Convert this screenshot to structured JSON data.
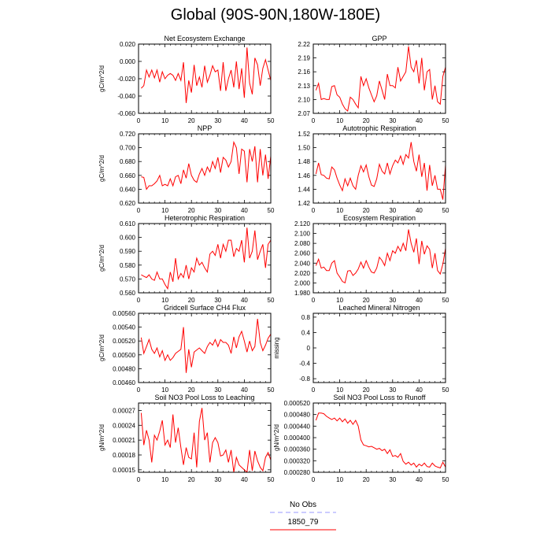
{
  "title": "Global (90S-90N,180W-180E)",
  "legend": {
    "items": [
      {
        "label": "No Obs",
        "color": "#9999ff",
        "dash": true
      },
      {
        "label": "1850_79",
        "color": "#ff0000",
        "dash": false
      }
    ]
  },
  "chart_data": [
    {
      "type": "line",
      "title": "Net Ecosystem Exchange",
      "ylabel": "gC/m^2/d",
      "xlim": [
        0,
        50
      ],
      "ylim": [
        -0.06,
        0.02
      ],
      "xticks": [
        "0",
        "10",
        "20",
        "30",
        "40",
        "50"
      ],
      "yticks": [
        [
          "-0.060",
          -0.06
        ],
        [
          "-0.040",
          -0.04
        ],
        [
          "-0.020",
          -0.02
        ],
        [
          "0.000",
          0.0
        ],
        [
          "0.020",
          0.02
        ]
      ],
      "series": [
        {
          "color": "#ff0000",
          "x0": 1,
          "values": [
            -0.031,
            -0.028,
            -0.01,
            -0.018,
            -0.01,
            -0.019,
            -0.01,
            -0.024,
            -0.012,
            -0.02,
            -0.016,
            -0.014,
            -0.016,
            -0.022,
            -0.014,
            -0.022,
            -0.001,
            -0.048,
            -0.022,
            -0.036,
            -0.004,
            -0.028,
            -0.018,
            -0.03,
            -0.005,
            -0.024,
            -0.016,
            -0.005,
            -0.012,
            -0.01,
            -0.034,
            -0.001,
            -0.034,
            -0.02,
            -0.01,
            -0.03,
            0.0,
            -0.032,
            -0.008,
            -0.042,
            0.016,
            -0.025,
            -0.038,
            0.004,
            -0.004,
            -0.028,
            -0.008,
            0.002,
            -0.01,
            -0.022
          ]
        }
      ]
    },
    {
      "type": "line",
      "title": "GPP",
      "ylabel": "",
      "xlim": [
        0,
        50
      ],
      "ylim": [
        2.07,
        2.22
      ],
      "xticks": [
        "0",
        "10",
        "20",
        "30",
        "40",
        "50"
      ],
      "yticks": [
        [
          "2.07",
          2.07
        ],
        [
          "2.10",
          2.1
        ],
        [
          "2.13",
          2.13
        ],
        [
          "2.16",
          2.16
        ],
        [
          "2.19",
          2.19
        ],
        [
          "2.22",
          2.22
        ]
      ],
      "series": [
        {
          "color": "#ff0000",
          "x0": 1,
          "values": [
            2.12,
            2.135,
            2.1,
            2.102,
            2.1,
            2.1,
            2.128,
            2.13,
            2.11,
            2.105,
            2.09,
            2.08,
            2.075,
            2.105,
            2.1,
            2.09,
            2.082,
            2.15,
            2.13,
            2.145,
            2.125,
            2.11,
            2.095,
            2.108,
            2.14,
            2.12,
            2.1,
            2.155,
            2.13,
            2.13,
            2.125,
            2.17,
            2.14,
            2.15,
            2.16,
            2.215,
            2.17,
            2.16,
            2.185,
            2.135,
            2.19,
            2.12,
            2.16,
            2.165,
            2.1,
            2.13,
            2.095,
            2.09,
            2.15,
            2.17
          ]
        }
      ]
    },
    {
      "type": "line",
      "title": "NPP",
      "ylabel": "gC/m^2/d",
      "xlim": [
        0,
        50
      ],
      "ylim": [
        0.62,
        0.72
      ],
      "xticks": [
        "0",
        "10",
        "20",
        "30",
        "40",
        "50"
      ],
      "yticks": [
        [
          "0.620",
          0.62
        ],
        [
          "0.640",
          0.64
        ],
        [
          "0.660",
          0.66
        ],
        [
          "0.680",
          0.68
        ],
        [
          "0.700",
          0.7
        ],
        [
          "0.720",
          0.72
        ]
      ],
      "series": [
        {
          "color": "#ff0000",
          "x0": 1,
          "values": [
            0.658,
            0.657,
            0.64,
            0.645,
            0.645,
            0.648,
            0.652,
            0.66,
            0.645,
            0.647,
            0.645,
            0.655,
            0.645,
            0.658,
            0.66,
            0.648,
            0.668,
            0.656,
            0.677,
            0.66,
            0.653,
            0.65,
            0.662,
            0.67,
            0.66,
            0.672,
            0.665,
            0.68,
            0.67,
            0.686,
            0.664,
            0.686,
            0.682,
            0.672,
            0.68,
            0.708,
            0.7,
            0.662,
            0.698,
            0.695,
            0.65,
            0.698,
            0.68,
            0.702,
            0.65,
            0.698,
            0.66,
            0.69,
            0.655,
            0.688
          ]
        }
      ]
    },
    {
      "type": "line",
      "title": "Autotrophic Respiration",
      "ylabel": "",
      "xlim": [
        0,
        50
      ],
      "ylim": [
        1.42,
        1.52
      ],
      "xticks": [
        "0",
        "10",
        "20",
        "30",
        "40",
        "50"
      ],
      "yticks": [
        [
          "1.42",
          1.42
        ],
        [
          "1.44",
          1.44
        ],
        [
          "1.46",
          1.46
        ],
        [
          "1.48",
          1.48
        ],
        [
          "1.50",
          1.5
        ],
        [
          "1.52",
          1.52
        ]
      ],
      "series": [
        {
          "color": "#ff0000",
          "x0": 1,
          "values": [
            1.462,
            1.478,
            1.461,
            1.46,
            1.456,
            1.455,
            1.472,
            1.468,
            1.456,
            1.446,
            1.438,
            1.455,
            1.445,
            1.456,
            1.445,
            1.44,
            1.46,
            1.474,
            1.465,
            1.475,
            1.458,
            1.446,
            1.444,
            1.455,
            1.476,
            1.466,
            1.462,
            1.478,
            1.462,
            1.474,
            1.482,
            1.478,
            1.488,
            1.476,
            1.49,
            1.485,
            1.508,
            1.48,
            1.466,
            1.49,
            1.458,
            1.478,
            1.438,
            1.475,
            1.445,
            1.46,
            1.44,
            1.44,
            1.425,
            1.475
          ]
        }
      ]
    },
    {
      "type": "line",
      "title": "Heterotrophic Respiration",
      "ylabel": "gC/m^2/d",
      "xlim": [
        0,
        50
      ],
      "ylim": [
        0.56,
        0.61
      ],
      "xticks": [
        "0",
        "10",
        "20",
        "30",
        "40",
        "50"
      ],
      "yticks": [
        [
          "0.560",
          0.56
        ],
        [
          "0.570",
          0.57
        ],
        [
          "0.580",
          0.58
        ],
        [
          "0.590",
          0.59
        ],
        [
          "0.600",
          0.6
        ],
        [
          "0.610",
          0.61
        ]
      ],
      "series": [
        {
          "color": "#ff0000",
          "x0": 1,
          "values": [
            0.573,
            0.572,
            0.571,
            0.573,
            0.57,
            0.569,
            0.575,
            0.57,
            0.57,
            0.566,
            0.563,
            0.575,
            0.568,
            0.585,
            0.57,
            0.574,
            0.571,
            0.58,
            0.57,
            0.578,
            0.575,
            0.585,
            0.58,
            0.582,
            0.578,
            0.575,
            0.588,
            0.59,
            0.587,
            0.595,
            0.585,
            0.595,
            0.59,
            0.598,
            0.598,
            0.586,
            0.592,
            0.59,
            0.598,
            0.582,
            0.607,
            0.585,
            0.59,
            0.605,
            0.584,
            0.59,
            0.595,
            0.578,
            0.595,
            0.598
          ]
        }
      ]
    },
    {
      "type": "line",
      "title": "Ecosystem Respiration",
      "ylabel": "",
      "xlim": [
        0,
        50
      ],
      "ylim": [
        1.98,
        2.12
      ],
      "xticks": [
        "0",
        "10",
        "20",
        "30",
        "40",
        "50"
      ],
      "yticks": [
        [
          "1.980",
          1.98
        ],
        [
          "2.000",
          2.0
        ],
        [
          "2.020",
          2.02
        ],
        [
          "2.040",
          2.04
        ],
        [
          "2.060",
          2.06
        ],
        [
          "2.080",
          2.08
        ],
        [
          "2.100",
          2.1
        ],
        [
          "2.120",
          2.12
        ]
      ],
      "series": [
        {
          "color": "#ff0000",
          "x0": 1,
          "values": [
            2.035,
            2.048,
            2.03,
            2.032,
            2.025,
            2.025,
            2.04,
            2.045,
            2.02,
            2.012,
            2.003,
            2.0,
            2.024,
            2.025,
            2.015,
            2.02,
            2.028,
            2.042,
            2.03,
            2.045,
            2.032,
            2.022,
            2.02,
            2.03,
            2.052,
            2.045,
            2.035,
            2.06,
            2.045,
            2.065,
            2.06,
            2.074,
            2.064,
            2.08,
            2.065,
            2.108,
            2.08,
            2.062,
            2.09,
            2.038,
            2.085,
            2.058,
            2.075,
            2.068,
            2.03,
            2.06,
            2.025,
            2.018,
            2.038,
            2.07
          ]
        }
      ]
    },
    {
      "type": "line",
      "title": "Gridcell Surface CH4 Flux",
      "ylabel": "gC/m^2/d",
      "xlim": [
        0,
        50
      ],
      "ylim": [
        0.0046,
        0.0056
      ],
      "xticks": [
        "0",
        "10",
        "20",
        "30",
        "40",
        "50"
      ],
      "yticks": [
        [
          "0.00460",
          0.0046
        ],
        [
          "0.00480",
          0.0048
        ],
        [
          "0.00500",
          0.005
        ],
        [
          "0.00520",
          0.0052
        ],
        [
          "0.00540",
          0.0054
        ],
        [
          "0.00560",
          0.0056
        ]
      ],
      "series": [
        {
          "color": "#ff0000",
          "x0": 1,
          "values": [
            0.00525,
            0.00502,
            0.00512,
            0.00522,
            0.00508,
            0.00502,
            0.0051,
            0.00497,
            0.00506,
            0.00492,
            0.005,
            0.00492,
            0.00496,
            0.00502,
            0.00505,
            0.00508,
            0.0054,
            0.00474,
            0.00508,
            0.00482,
            0.00504,
            0.00507,
            0.0051,
            0.00506,
            0.00502,
            0.00512,
            0.00518,
            0.00514,
            0.00522,
            0.00512,
            0.00522,
            0.00518,
            0.00518,
            0.00514,
            0.00502,
            0.00526,
            0.0051,
            0.00526,
            0.00534,
            0.0052,
            0.00504,
            0.0052,
            0.00506,
            0.00512,
            0.00552,
            0.00518,
            0.00506,
            0.00514,
            0.00524,
            0.0053
          ]
        }
      ]
    },
    {
      "type": "line",
      "title": "Leached Mineral Nitrogen",
      "ylabel": "missing",
      "xlim": [
        0,
        50
      ],
      "ylim": [
        -0.9,
        0.9
      ],
      "xticks": [
        "0",
        "10",
        "20",
        "30",
        "40",
        "50"
      ],
      "yticks": [
        [
          "-0.8",
          -0.8
        ],
        [
          "-0.4",
          -0.4
        ],
        [
          "0",
          0
        ],
        [
          "0.4",
          0.4
        ],
        [
          "0.8",
          0.8
        ]
      ],
      "series": []
    },
    {
      "type": "line",
      "title": "Soil NO3 Pool Loss to Leaching",
      "ylabel": "gN/m^2/d",
      "xlim": [
        0,
        50
      ],
      "ylim": [
        0.000145,
        0.000285
      ],
      "xticks": [
        "0",
        "10",
        "20",
        "30",
        "40",
        "50"
      ],
      "yticks": [
        [
          "0.00015",
          0.00015
        ],
        [
          "0.00018",
          0.00018
        ],
        [
          "0.00021",
          0.00021
        ],
        [
          "0.00024",
          0.00024
        ],
        [
          "0.00027",
          0.00027
        ]
      ],
      "series": [
        {
          "color": "#ff0000",
          "x0": 1,
          "values": [
            0.000265,
            0.0002,
            0.00023,
            0.00021,
            0.000165,
            0.00022,
            0.00021,
            0.000228,
            0.00025,
            0.0002,
            0.00021,
            0.000195,
            0.000262,
            0.000205,
            0.000235,
            0.000195,
            0.00016,
            0.000195,
            0.000175,
            0.000172,
            0.000225,
            0.000155,
            0.000248,
            0.000275,
            0.00021,
            0.000225,
            0.000165,
            0.000205,
            0.000215,
            0.000205,
            0.000178,
            0.00018,
            0.00019,
            0.000165,
            0.00019,
            0.000145,
            0.000175,
            0.00016,
            0.000155,
            0.00015,
            0.000145,
            0.00019,
            0.000148,
            0.000188,
            0.000168,
            0.000155,
            0.000148,
            0.000175,
            0.000185,
            0.00017
          ]
        }
      ]
    },
    {
      "type": "line",
      "title": "Soil NO3 Pool Loss to Runoff",
      "ylabel": "gN/m^2/d",
      "xlim": [
        0,
        50
      ],
      "ylim": [
        0.00028,
        0.00052
      ],
      "xticks": [
        "0",
        "10",
        "20",
        "30",
        "40",
        "50"
      ],
      "yticks": [
        [
          "0.000280",
          0.00028
        ],
        [
          "0.000320",
          0.00032
        ],
        [
          "0.000360",
          0.00036
        ],
        [
          "0.000400",
          0.0004
        ],
        [
          "0.000440",
          0.00044
        ],
        [
          "0.000480",
          0.00048
        ],
        [
          "0.000520",
          0.00052
        ]
      ],
      "series": [
        {
          "color": "#ff0000",
          "x0": 1,
          "values": [
            0.00046,
            0.000485,
            0.000485,
            0.000483,
            0.000474,
            0.000468,
            0.000463,
            0.000468,
            0.000458,
            0.000468,
            0.000455,
            0.000465,
            0.00045,
            0.00046,
            0.000446,
            0.00046,
            0.00044,
            0.000392,
            0.000375,
            0.000372,
            0.000368,
            0.00037,
            0.000365,
            0.00036,
            0.000363,
            0.000355,
            0.00036,
            0.000345,
            0.000358,
            0.000335,
            0.000338,
            0.000332,
            0.000345,
            0.000318,
            0.000308,
            0.000315,
            0.000305,
            0.000312,
            0.000298,
            0.000308,
            0.000302,
            0.000312,
            0.0003,
            0.000298,
            0.000312,
            0.000302,
            0.000298,
            0.000295,
            0.000315,
            0.000298
          ]
        }
      ]
    }
  ]
}
